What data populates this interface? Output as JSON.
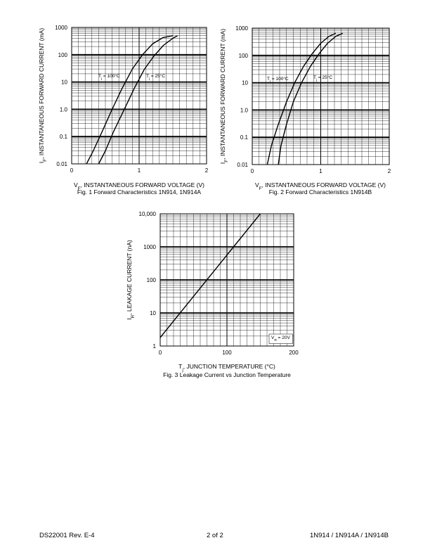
{
  "charts": [
    {
      "id": "fig1",
      "caption": "Fig. 1  Forward Characteristics 1N914, 1N914A",
      "xlabel_main": "V",
      "xlabel_sub": "F",
      "xlabel_rest": ", INSTANTANEOUS FORWARD VOLTAGE (V)",
      "ylabel_main": "I",
      "ylabel_sub": "F",
      "ylabel_rest": ", INSTANTANEOUS FORWARD CURRENT (mA)",
      "x_ticks": [
        "0",
        "1",
        "2"
      ],
      "y_ticks": [
        "0.01",
        "0.1",
        "1.0",
        "10",
        "100",
        "1000"
      ],
      "annotations": [
        {
          "main": "T",
          "sub": "j",
          "rest": " = 100°C"
        },
        {
          "main": "T",
          "sub": "j",
          "rest": " = 25°C"
        }
      ]
    },
    {
      "id": "fig2",
      "caption": "Fig. 2  Forward Characteristics 1N914B",
      "xlabel_main": "V",
      "xlabel_sub": "F",
      "xlabel_rest": ", INSTANTANEOUS FORWARD VOLTAGE (V)",
      "ylabel_main": "I",
      "ylabel_sub": "F",
      "ylabel_rest": ", INSTANTANEOUS FORWARD CURRENT (mA)",
      "x_ticks": [
        "0",
        "1",
        "2"
      ],
      "y_ticks": [
        "0.01",
        "0.1",
        "1.0",
        "10",
        "100",
        "1000"
      ],
      "annotations": [
        {
          "main": "T",
          "sub": "j",
          "rest": " = 100°C"
        },
        {
          "main": "T",
          "sub": "j",
          "rest": " = 25°C"
        }
      ]
    },
    {
      "id": "fig3",
      "caption": "Fig. 3  Leakage Current vs Junction Temperature",
      "xlabel_main": "T",
      "xlabel_sub": "j",
      "xlabel_rest": ", JUNCTION TEMPERATURE (°C)",
      "ylabel_main": "I",
      "ylabel_sub": "R",
      "ylabel_rest": ", LEAKAGE CURRENT (nA)",
      "x_ticks": [
        "0",
        "100",
        "200"
      ],
      "y_ticks": [
        "1",
        "10",
        "100",
        "1000",
        "10,000"
      ],
      "annotations": [
        {
          "main": "V",
          "sub": "R",
          "rest": " = 20V"
        }
      ]
    }
  ],
  "chart_data": [
    {
      "type": "line",
      "title": "Fig. 1  Forward Characteristics 1N914, 1N914A",
      "xlabel": "VF, INSTANTANEOUS FORWARD VOLTAGE (V)",
      "ylabel": "IF, INSTANTANEOUS FORWARD CURRENT (mA)",
      "xlim": [
        0,
        2
      ],
      "ylim": [
        0.01,
        1000
      ],
      "yscale": "log",
      "grid": true,
      "series": [
        {
          "name": "Tj = 100°C",
          "x": [
            0.22,
            0.32,
            0.45,
            0.6,
            0.75,
            0.9,
            1.05,
            1.2,
            1.35,
            1.5
          ],
          "y": [
            0.01,
            0.03,
            0.15,
            1.0,
            6,
            30,
            100,
            250,
            420,
            500
          ]
        },
        {
          "name": "Tj = 25°C",
          "x": [
            0.4,
            0.5,
            0.62,
            0.78,
            0.93,
            1.08,
            1.22,
            1.36,
            1.5,
            1.57
          ],
          "y": [
            0.01,
            0.03,
            0.15,
            1.0,
            6,
            30,
            90,
            220,
            400,
            500
          ]
        }
      ]
    },
    {
      "type": "line",
      "title": "Fig. 2  Forward Characteristics 1N914B",
      "xlabel": "VF, INSTANTANEOUS FORWARD VOLTAGE (V)",
      "ylabel": "IF, INSTANTANEOUS FORWARD CURRENT (mA)",
      "xlim": [
        0,
        2
      ],
      "ylim": [
        0.01,
        1000
      ],
      "yscale": "log",
      "grid": true,
      "series": [
        {
          "name": "Tj = 100°C",
          "x": [
            0.22,
            0.28,
            0.38,
            0.5,
            0.62,
            0.75,
            0.88,
            1.0,
            1.12,
            1.22
          ],
          "y": [
            0.01,
            0.05,
            0.3,
            2,
            10,
            40,
            120,
            280,
            500,
            650
          ]
        },
        {
          "name": "Tj = 25°C",
          "x": [
            0.38,
            0.42,
            0.5,
            0.6,
            0.72,
            0.85,
            0.98,
            1.1,
            1.22,
            1.32
          ],
          "y": [
            0.01,
            0.05,
            0.3,
            2,
            10,
            40,
            120,
            280,
            500,
            650
          ]
        }
      ]
    },
    {
      "type": "line",
      "title": "Fig. 3  Leakage Current vs Junction Temperature",
      "xlabel": "Tj, JUNCTION TEMPERATURE (°C)",
      "ylabel": "IR, LEAKAGE CURRENT (nA)",
      "xlim": [
        0,
        200
      ],
      "ylim": [
        1,
        10000
      ],
      "yscale": "log",
      "grid": true,
      "series": [
        {
          "name": "VR = 20V",
          "x": [
            0,
            150
          ],
          "y": [
            1.8,
            10000
          ]
        }
      ]
    }
  ],
  "footer": {
    "left": "DS22001 Rev. E-4",
    "center": "2 of 2",
    "right": "1N914 / 1N914A / 1N914B"
  }
}
